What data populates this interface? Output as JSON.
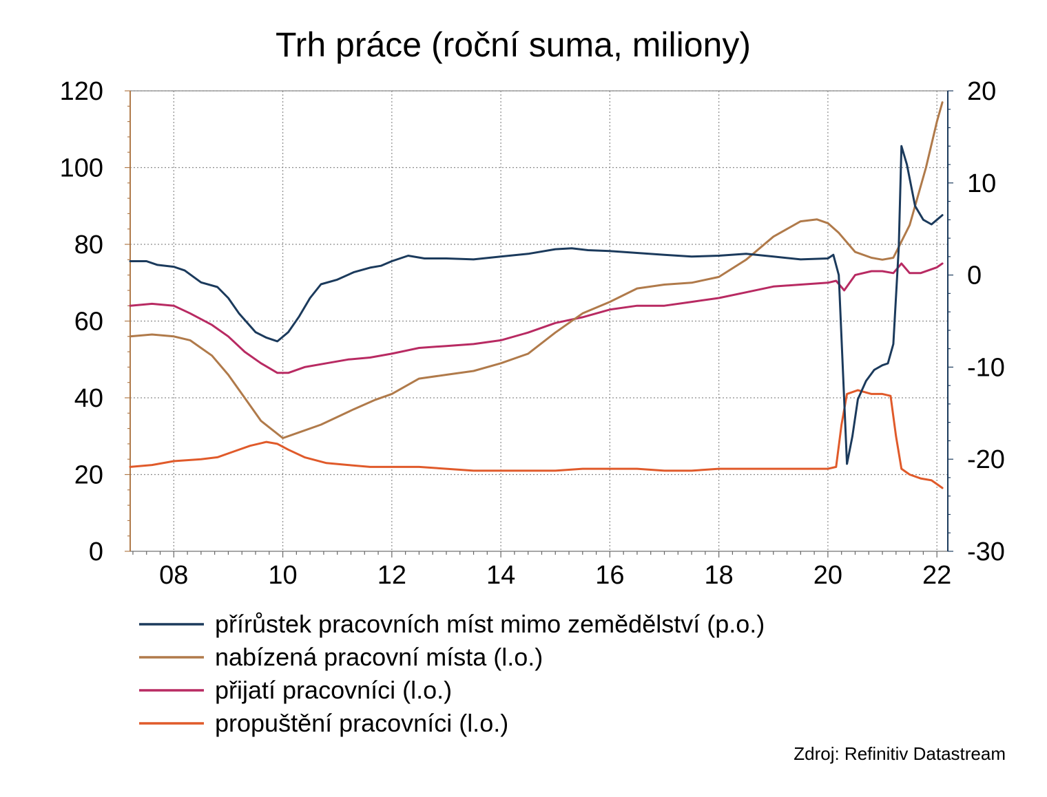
{
  "chart_data": {
    "type": "line",
    "title": "Trh práce (roční suma, miliony)",
    "x_ticks": [
      "08",
      "10",
      "12",
      "14",
      "16",
      "18",
      "20",
      "22"
    ],
    "x_tick_values": [
      2008,
      2010,
      2012,
      2014,
      2016,
      2018,
      2020,
      2022
    ],
    "xlim": [
      2007.2,
      2022.2
    ],
    "y_left": {
      "ticks": [
        "0",
        "20",
        "40",
        "60",
        "80",
        "100",
        "120"
      ],
      "ylim": [
        0,
        120
      ]
    },
    "y_right": {
      "ticks": [
        "-30",
        "-20",
        "-10",
        "0",
        "10",
        "20"
      ],
      "ylim": [
        -30,
        20
      ]
    },
    "grid": true,
    "legend_position": "bottom",
    "source": "Zdroj: Refinitiv Datastream",
    "series": [
      {
        "name": "přírůstek pracovních míst mimo zemědělství (p.o.)",
        "axis": "right",
        "color": "#1b3a5c",
        "points": [
          [
            2007.2,
            1.5
          ],
          [
            2007.5,
            1.5
          ],
          [
            2007.7,
            1.1
          ],
          [
            2008.0,
            0.9
          ],
          [
            2008.2,
            0.5
          ],
          [
            2008.5,
            -0.8
          ],
          [
            2008.8,
            -1.3
          ],
          [
            2009.0,
            -2.5
          ],
          [
            2009.2,
            -4.2
          ],
          [
            2009.5,
            -6.2
          ],
          [
            2009.7,
            -6.8
          ],
          [
            2009.9,
            -7.2
          ],
          [
            2010.1,
            -6.2
          ],
          [
            2010.3,
            -4.5
          ],
          [
            2010.5,
            -2.5
          ],
          [
            2010.7,
            -1.0
          ],
          [
            2011.0,
            -0.5
          ],
          [
            2011.3,
            0.3
          ],
          [
            2011.6,
            0.8
          ],
          [
            2011.8,
            1.0
          ],
          [
            2012.0,
            1.5
          ],
          [
            2012.3,
            2.1
          ],
          [
            2012.6,
            1.8
          ],
          [
            2013.0,
            1.8
          ],
          [
            2013.5,
            1.7
          ],
          [
            2014.0,
            2.0
          ],
          [
            2014.5,
            2.3
          ],
          [
            2015.0,
            2.8
          ],
          [
            2015.3,
            2.9
          ],
          [
            2015.6,
            2.7
          ],
          [
            2016.0,
            2.6
          ],
          [
            2016.5,
            2.4
          ],
          [
            2017.0,
            2.2
          ],
          [
            2017.5,
            2.0
          ],
          [
            2018.0,
            2.1
          ],
          [
            2018.5,
            2.3
          ],
          [
            2019.0,
            2.0
          ],
          [
            2019.5,
            1.7
          ],
          [
            2020.0,
            1.8
          ],
          [
            2020.1,
            2.2
          ],
          [
            2020.2,
            0.0
          ],
          [
            2020.35,
            -20.5
          ],
          [
            2020.45,
            -17.5
          ],
          [
            2020.55,
            -13.5
          ],
          [
            2020.7,
            -11.5
          ],
          [
            2020.85,
            -10.3
          ],
          [
            2021.0,
            -9.8
          ],
          [
            2021.1,
            -9.6
          ],
          [
            2021.2,
            -7.5
          ],
          [
            2021.3,
            3.0
          ],
          [
            2021.35,
            14.0
          ],
          [
            2021.45,
            12.0
          ],
          [
            2021.6,
            7.5
          ],
          [
            2021.75,
            6.0
          ],
          [
            2021.9,
            5.5
          ],
          [
            2022.0,
            6.0
          ],
          [
            2022.1,
            6.5
          ]
        ]
      },
      {
        "name": "nabízená pracovní místa (l.o.)",
        "axis": "left",
        "color": "#b07a4a",
        "points": [
          [
            2007.2,
            56
          ],
          [
            2007.6,
            56.5
          ],
          [
            2008.0,
            56
          ],
          [
            2008.3,
            55
          ],
          [
            2008.7,
            51
          ],
          [
            2009.0,
            46
          ],
          [
            2009.3,
            40
          ],
          [
            2009.6,
            34
          ],
          [
            2010.0,
            29.5
          ],
          [
            2010.3,
            31
          ],
          [
            2010.7,
            33
          ],
          [
            2011.0,
            35
          ],
          [
            2011.3,
            37
          ],
          [
            2011.7,
            39.5
          ],
          [
            2012.0,
            41
          ],
          [
            2012.5,
            45
          ],
          [
            2013.0,
            46
          ],
          [
            2013.5,
            47
          ],
          [
            2014.0,
            49
          ],
          [
            2014.5,
            51.5
          ],
          [
            2015.0,
            57
          ],
          [
            2015.5,
            62
          ],
          [
            2016.0,
            65
          ],
          [
            2016.5,
            68.5
          ],
          [
            2017.0,
            69.5
          ],
          [
            2017.5,
            70
          ],
          [
            2018.0,
            71.5
          ],
          [
            2018.5,
            76
          ],
          [
            2019.0,
            82
          ],
          [
            2019.5,
            86
          ],
          [
            2019.8,
            86.5
          ],
          [
            2020.0,
            85.5
          ],
          [
            2020.2,
            83
          ],
          [
            2020.5,
            78
          ],
          [
            2020.8,
            76.5
          ],
          [
            2021.0,
            76
          ],
          [
            2021.2,
            76.5
          ],
          [
            2021.5,
            85
          ],
          [
            2021.8,
            100
          ],
          [
            2022.0,
            112
          ],
          [
            2022.1,
            117
          ]
        ]
      },
      {
        "name": "přijatí pracovníci (l.o.)",
        "axis": "left",
        "color": "#b82a62",
        "points": [
          [
            2007.2,
            64
          ],
          [
            2007.6,
            64.5
          ],
          [
            2008.0,
            64
          ],
          [
            2008.3,
            62
          ],
          [
            2008.7,
            59
          ],
          [
            2009.0,
            56
          ],
          [
            2009.3,
            52
          ],
          [
            2009.6,
            49
          ],
          [
            2009.9,
            46.5
          ],
          [
            2010.1,
            46.5
          ],
          [
            2010.4,
            48
          ],
          [
            2010.8,
            49
          ],
          [
            2011.2,
            50
          ],
          [
            2011.6,
            50.5
          ],
          [
            2012.0,
            51.5
          ],
          [
            2012.5,
            53
          ],
          [
            2013.0,
            53.5
          ],
          [
            2013.5,
            54
          ],
          [
            2014.0,
            55
          ],
          [
            2014.5,
            57
          ],
          [
            2015.0,
            59.5
          ],
          [
            2015.5,
            61
          ],
          [
            2016.0,
            63
          ],
          [
            2016.5,
            64
          ],
          [
            2017.0,
            64
          ],
          [
            2017.5,
            65
          ],
          [
            2018.0,
            66
          ],
          [
            2018.5,
            67.5
          ],
          [
            2019.0,
            69
          ],
          [
            2019.5,
            69.5
          ],
          [
            2020.0,
            70
          ],
          [
            2020.15,
            70.5
          ],
          [
            2020.3,
            68
          ],
          [
            2020.5,
            72
          ],
          [
            2020.8,
            73
          ],
          [
            2021.0,
            73
          ],
          [
            2021.2,
            72.5
          ],
          [
            2021.35,
            75
          ],
          [
            2021.5,
            72.5
          ],
          [
            2021.7,
            72.5
          ],
          [
            2022.0,
            74
          ],
          [
            2022.1,
            75
          ]
        ]
      },
      {
        "name": "propuštění pracovníci (l.o.)",
        "axis": "left",
        "color": "#e05a2a",
        "points": [
          [
            2007.2,
            22
          ],
          [
            2007.6,
            22.5
          ],
          [
            2008.0,
            23.5
          ],
          [
            2008.5,
            24
          ],
          [
            2008.8,
            24.5
          ],
          [
            2009.1,
            26
          ],
          [
            2009.4,
            27.5
          ],
          [
            2009.7,
            28.5
          ],
          [
            2009.9,
            28
          ],
          [
            2010.1,
            26.5
          ],
          [
            2010.4,
            24.5
          ],
          [
            2010.8,
            23
          ],
          [
            2011.2,
            22.5
          ],
          [
            2011.6,
            22
          ],
          [
            2012.0,
            22
          ],
          [
            2012.5,
            22
          ],
          [
            2013.0,
            21.5
          ],
          [
            2013.5,
            21
          ],
          [
            2014.0,
            21
          ],
          [
            2014.5,
            21
          ],
          [
            2015.0,
            21
          ],
          [
            2015.5,
            21.5
          ],
          [
            2016.0,
            21.5
          ],
          [
            2016.5,
            21.5
          ],
          [
            2017.0,
            21
          ],
          [
            2017.5,
            21
          ],
          [
            2018.0,
            21.5
          ],
          [
            2018.5,
            21.5
          ],
          [
            2019.0,
            21.5
          ],
          [
            2019.5,
            21.5
          ],
          [
            2020.0,
            21.5
          ],
          [
            2020.15,
            22
          ],
          [
            2020.25,
            33
          ],
          [
            2020.35,
            41
          ],
          [
            2020.55,
            42
          ],
          [
            2020.8,
            41
          ],
          [
            2021.0,
            41
          ],
          [
            2021.15,
            40.5
          ],
          [
            2021.25,
            30
          ],
          [
            2021.35,
            21.5
          ],
          [
            2021.5,
            20
          ],
          [
            2021.7,
            19
          ],
          [
            2021.9,
            18.5
          ],
          [
            2022.0,
            17.5
          ],
          [
            2022.1,
            16.5
          ]
        ]
      }
    ]
  }
}
